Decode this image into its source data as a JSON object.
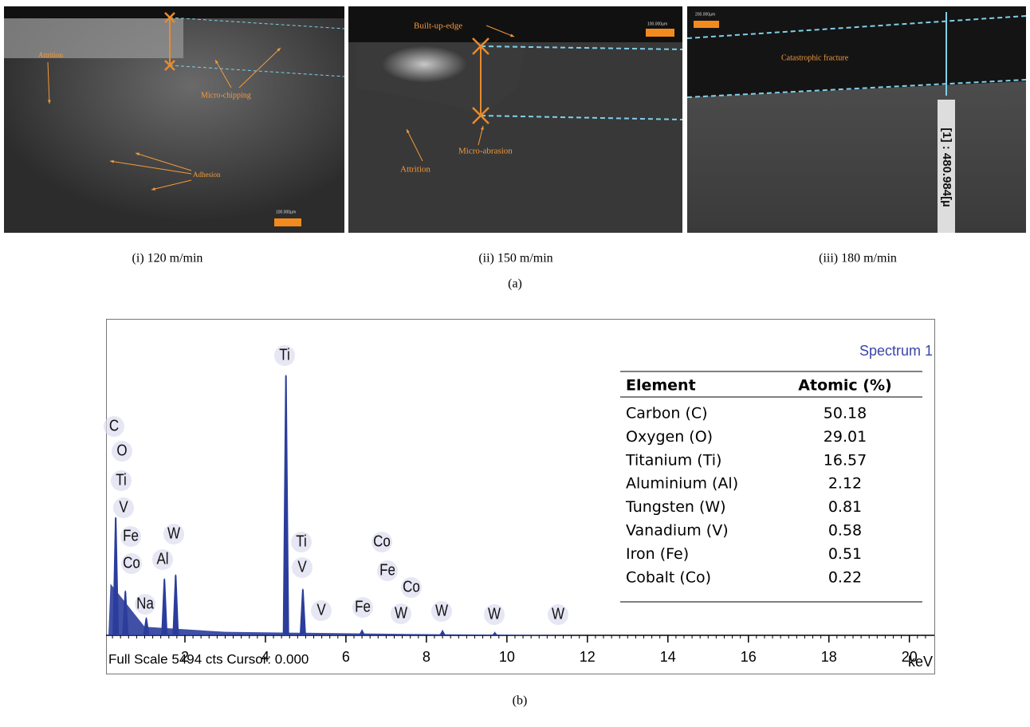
{
  "images": [
    {
      "caption": "(i) 120 m/min",
      "annotations": [
        "Attrition",
        "Micro-chipping",
        "Adhesion"
      ],
      "scale_bar": "100.000µm"
    },
    {
      "caption": "(ii) 150 m/min",
      "annotations": [
        "Built-up-edge",
        "Micro-abrasion",
        "Attrition"
      ],
      "scale_bar": "100.000µm"
    },
    {
      "caption": "(iii) 180 m/min",
      "annotations": [
        "Catastrophic fracture",
        "[1] : 480.984[µ"
      ],
      "scale_bar": "200.000µm"
    }
  ],
  "panel_a_label": "(a)",
  "panel_b_label": "(b)",
  "chart_data": {
    "type": "spectrum",
    "title": "Spectrum 1",
    "x_label": "keV",
    "footer": "Full Scale 5494 cts Cursor: 0.000",
    "full_scale": 5494,
    "color": "#2b3d9c",
    "xlim": [
      0,
      20.6
    ],
    "xticks": [
      2,
      4,
      6,
      8,
      10,
      12,
      14,
      16,
      18,
      20
    ],
    "x": [
      0.28,
      0.52,
      1.04,
      1.49,
      1.77,
      4.51,
      4.93,
      6.4,
      8.4,
      9.7
    ],
    "values": [
      2070,
      790,
      320,
      1000,
      1070,
      4550,
      820,
      110,
      100,
      70
    ],
    "peak_labels": [
      "Ti",
      "C",
      "O",
      "Ti",
      "V",
      "Fe",
      "Co",
      "Al",
      "W",
      "Na",
      "Ti",
      "V",
      "Co",
      "Fe",
      "Co",
      "V",
      "Fe",
      "W",
      "W",
      "W",
      "W"
    ]
  },
  "table": {
    "header": [
      "Element",
      "Atomic (%)"
    ],
    "rows": [
      [
        "Carbon (C)",
        "50.18"
      ],
      [
        "Oxygen (O)",
        "29.01"
      ],
      [
        "Titanium (Ti)",
        "16.57"
      ],
      [
        "Aluminium (Al)",
        "2.12"
      ],
      [
        "Tungsten (W)",
        "0.81"
      ],
      [
        "Vanadium (V)",
        "0.58"
      ],
      [
        "Iron (Fe)",
        "0.51"
      ],
      [
        "Cobalt (Co)",
        "0.22"
      ]
    ]
  }
}
